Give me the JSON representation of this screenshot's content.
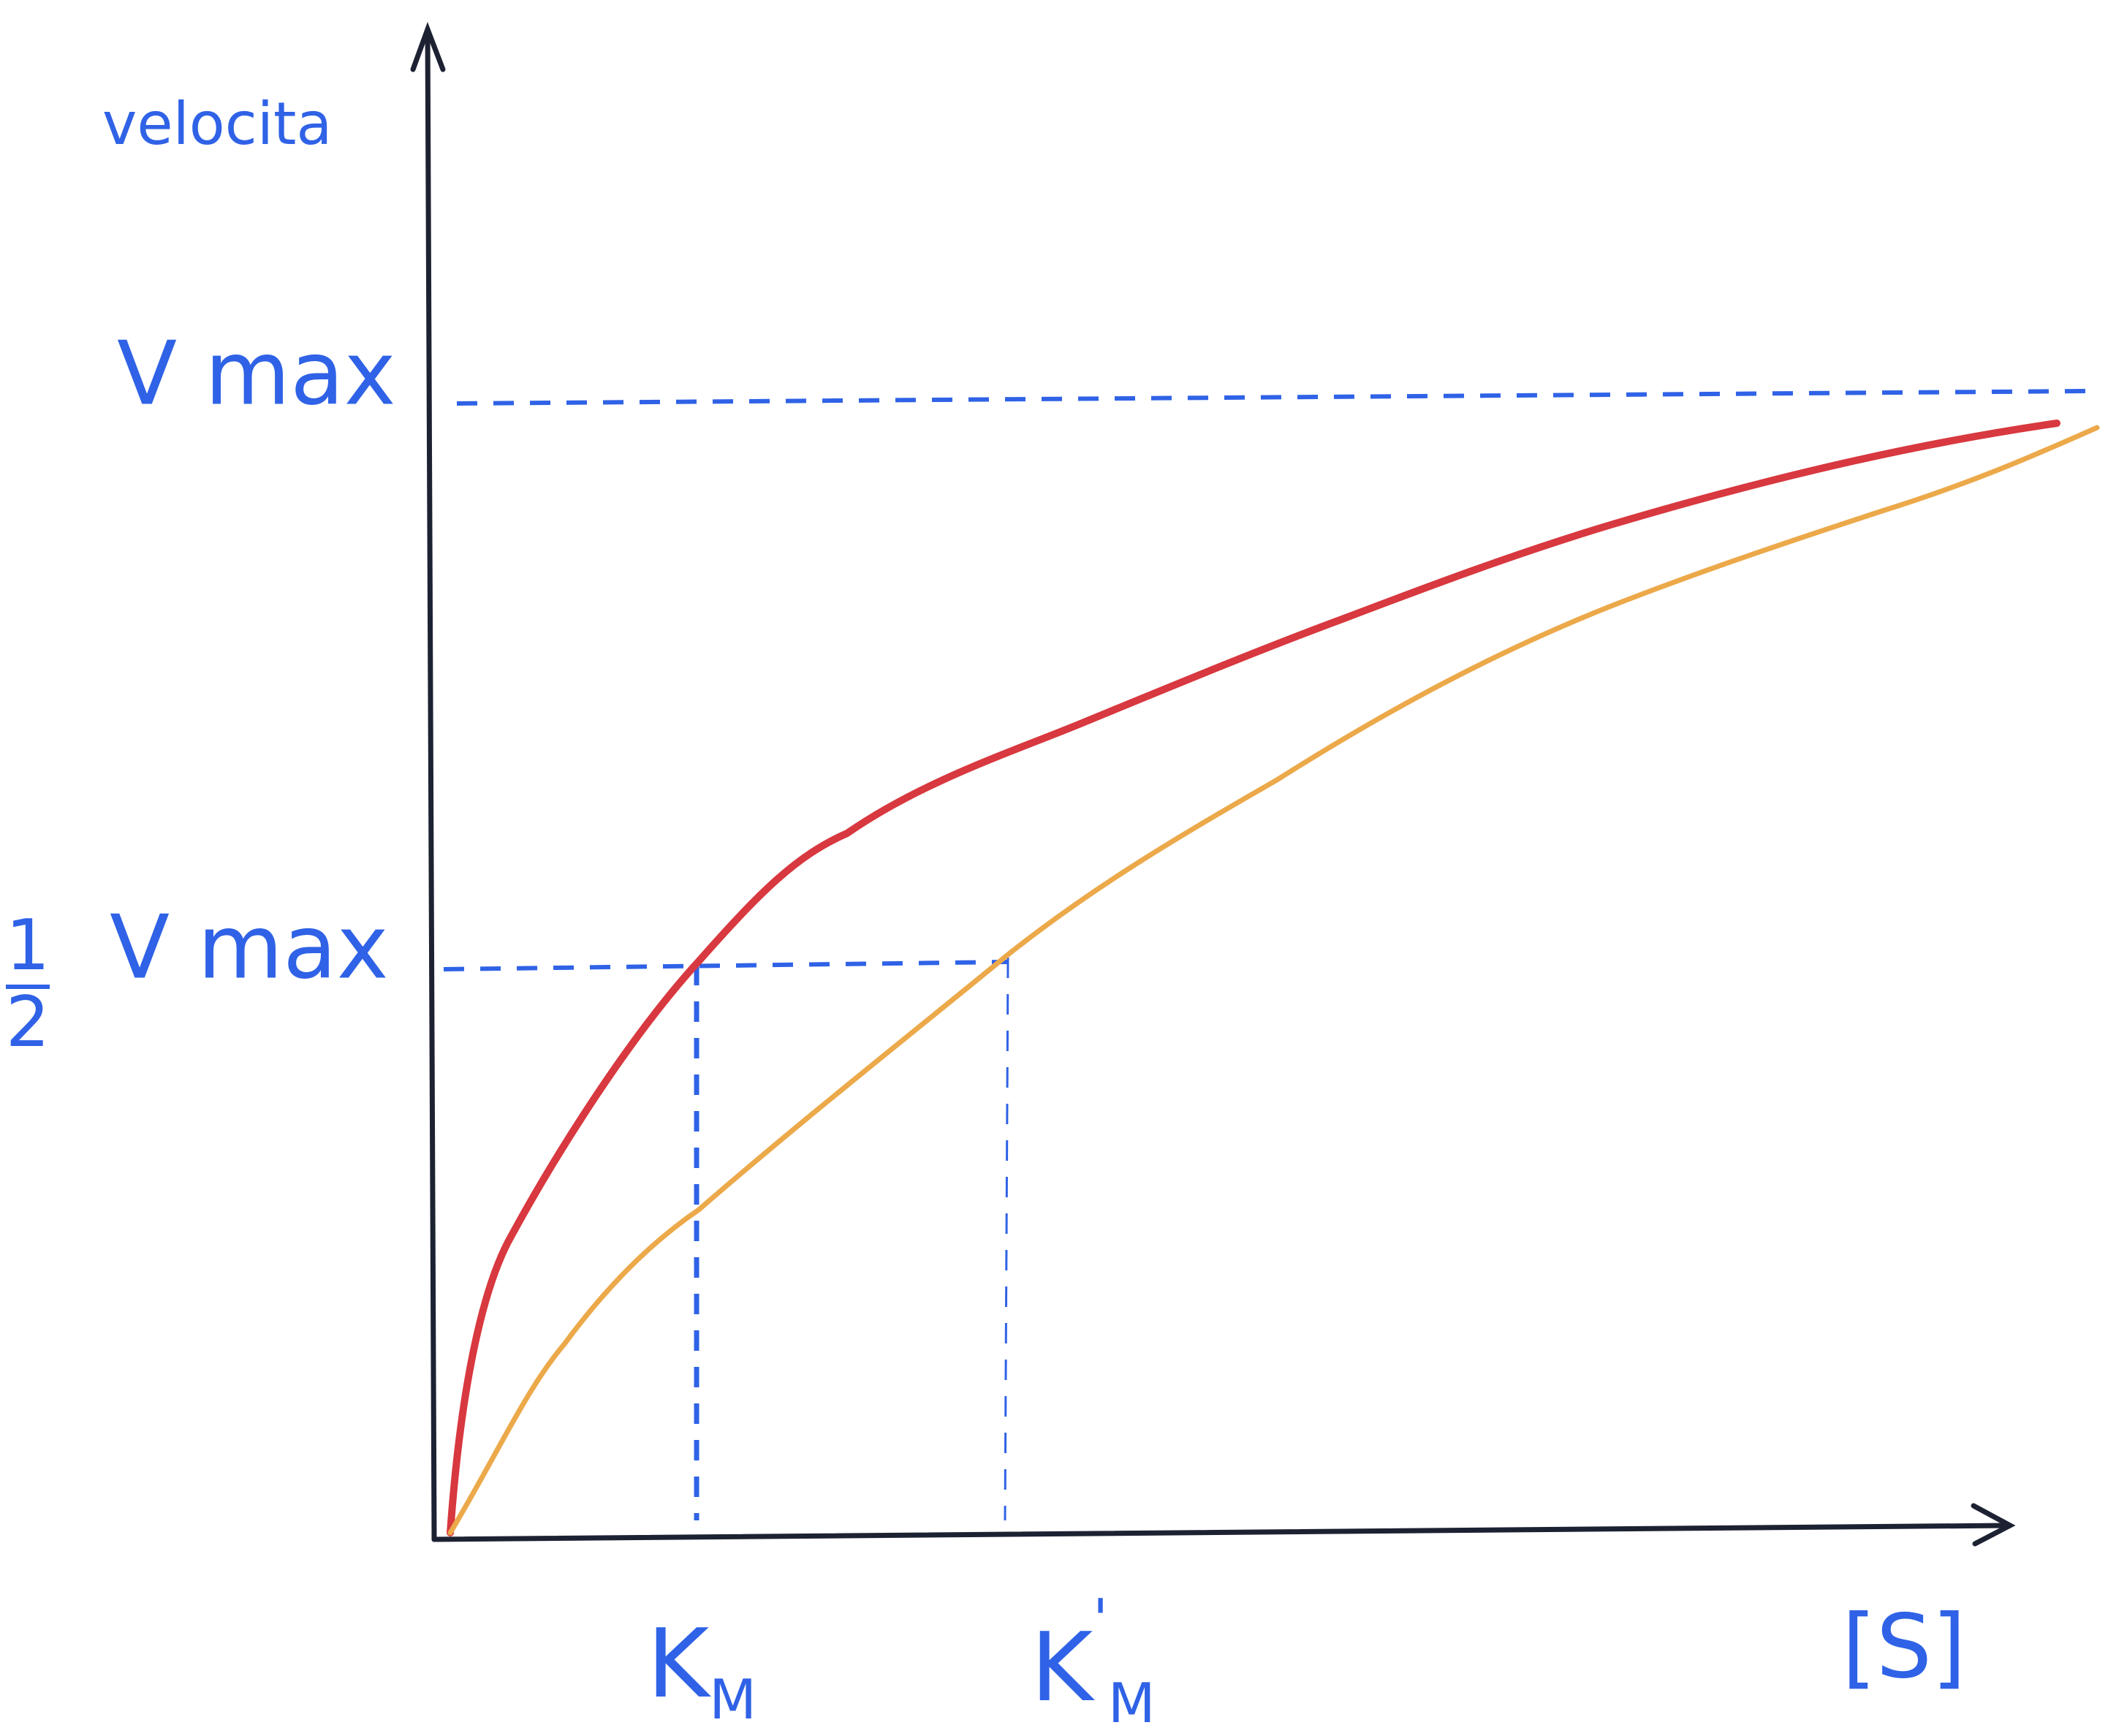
{
  "axes": {
    "y_label": "velocita",
    "x_label": "[S]"
  },
  "labels": {
    "vmax": "V max",
    "half_vmax": {
      "numerator": "1",
      "denominator": "2",
      "text": "V max"
    },
    "km": {
      "base": "K",
      "sub": "M"
    },
    "km_prime": {
      "base": "K",
      "prime": "'",
      "sub": "M"
    }
  }
}
